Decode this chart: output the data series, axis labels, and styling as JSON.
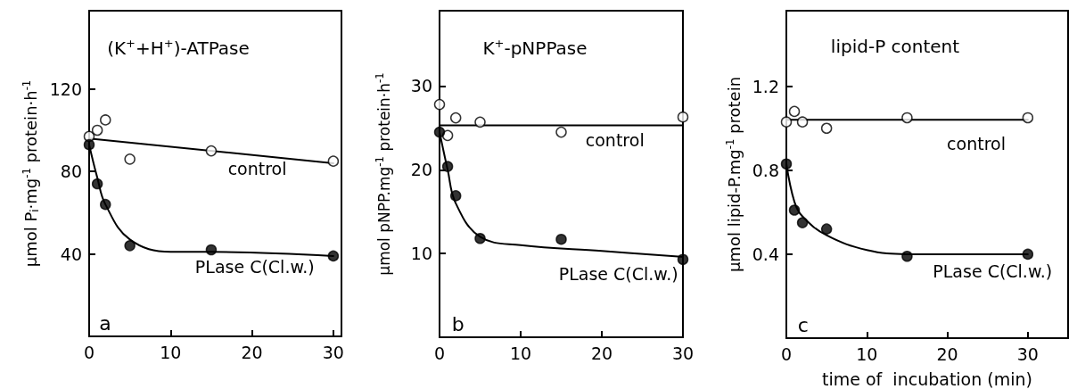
{
  "chart_data": [
    {
      "type": "scatter",
      "title": "(K$^{+}$+H$^{+}$)-ATPase",
      "ylabel": "μmol P$_{i}$·mg$^{-1}$ protein·h$^{-1}$",
      "xlim": [
        0,
        31
      ],
      "xticks": [
        0,
        10,
        20,
        30
      ],
      "ylim": [
        0,
        158
      ],
      "yticks": [
        40,
        80,
        120
      ],
      "grid": false,
      "series": [
        {
          "type": "line",
          "color": "#000000",
          "x": [
            0,
            30
          ],
          "values": [
            96,
            84
          ]
        },
        {
          "type": "line",
          "color": "#000000",
          "x": [
            0,
            1,
            2,
            5,
            10,
            15,
            30
          ],
          "values": [
            93,
            77,
            64,
            47,
            41,
            41,
            39
          ]
        },
        {
          "color": "#ffffff",
          "x": [
            0,
            1,
            2,
            5,
            15,
            30
          ],
          "values": [
            97,
            100,
            105,
            86,
            90,
            85
          ]
        },
        {
          "color": "#000000",
          "x": [
            0,
            1,
            2,
            5,
            15,
            30
          ],
          "values": [
            93,
            74,
            64,
            44,
            42,
            39
          ]
        }
      ],
      "annotations": [
        "control",
        "PLase C(Cl.w.)",
        "a"
      ]
    },
    {
      "type": "scatter",
      "title": "K$^{+}$-pNPPase",
      "ylabel": "μmol pNPP.mg$^{-1}$ protein·h$^{-1}$",
      "xlim": [
        0,
        30
      ],
      "xticks": [
        0,
        10,
        20,
        30
      ],
      "ylim": [
        0,
        39
      ],
      "yticks": [
        10,
        20,
        30
      ],
      "grid": false,
      "series": [
        {
          "type": "line",
          "color": "#000000",
          "x": [
            0,
            30
          ],
          "values": [
            25.3,
            25.3
          ]
        },
        {
          "type": "line",
          "color": "#000000",
          "x": [
            0,
            1,
            2,
            5,
            10,
            20,
            30
          ],
          "values": [
            24.5,
            20,
            16,
            12,
            11,
            10.3,
            9.6
          ]
        },
        {
          "color": "#ffffff",
          "x": [
            0,
            1,
            2,
            5,
            15,
            30
          ],
          "values": [
            27.8,
            24.1,
            26.2,
            25.7,
            24.5,
            26.3
          ]
        },
        {
          "color": "#000000",
          "x": [
            0,
            1,
            2,
            5,
            15,
            30
          ],
          "values": [
            24.5,
            20.4,
            16.9,
            11.8,
            11.7,
            9.3
          ]
        }
      ],
      "annotations": [
        "control",
        "PLase C(Cl.w.)",
        "b"
      ]
    },
    {
      "type": "scatter",
      "title": "lipid-P content",
      "xlabel": "time of  incubation (min)",
      "ylabel": "μmol lipid-P.mg$^{-1}$ protein",
      "xlim": [
        0,
        35
      ],
      "xticks": [
        0,
        10,
        20,
        30
      ],
      "ylim": [
        0,
        1.56
      ],
      "yticks": [
        0.4,
        0.8,
        1.2
      ],
      "grid": false,
      "series": [
        {
          "type": "line",
          "color": "#000000",
          "x": [
            0,
            30
          ],
          "values": [
            1.04,
            1.04
          ]
        },
        {
          "type": "line",
          "color": "#000000",
          "x": [
            0,
            1,
            2,
            5,
            10,
            15,
            30
          ],
          "values": [
            0.83,
            0.65,
            0.58,
            0.49,
            0.42,
            0.4,
            0.4
          ]
        },
        {
          "color": "#ffffff",
          "x": [
            0,
            1,
            2,
            5,
            15,
            30
          ],
          "values": [
            1.03,
            1.08,
            1.03,
            1.0,
            1.05,
            1.05
          ]
        },
        {
          "color": "#000000",
          "x": [
            0,
            1,
            2,
            5,
            15,
            30
          ],
          "values": [
            0.83,
            0.61,
            0.55,
            0.52,
            0.39,
            0.4
          ]
        }
      ],
      "annotations": [
        "control",
        "PLase C(Cl.w.)",
        "c"
      ]
    }
  ]
}
